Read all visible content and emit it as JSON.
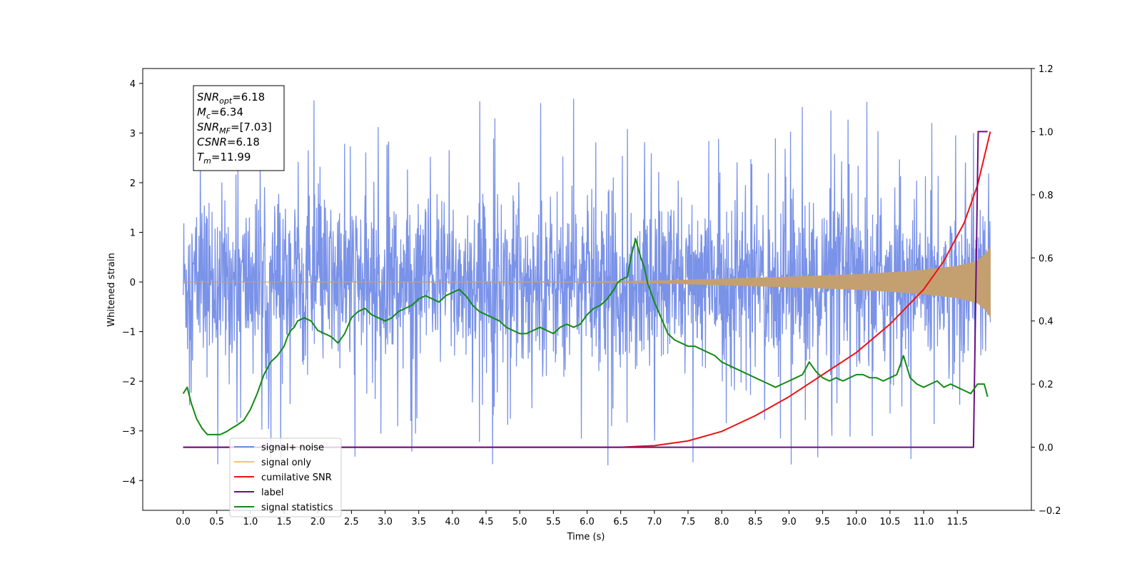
{
  "chart_data": {
    "type": "line",
    "xlabel": "Time (s)",
    "ylabel": "Whitened strain",
    "xlim": [
      -0.6,
      12.6
    ],
    "ylim_left": [
      -4.6,
      4.3
    ],
    "ylim_right": [
      -0.2,
      1.2
    ],
    "x_ticks": [
      0.0,
      0.5,
      1.0,
      1.5,
      2.0,
      2.5,
      3.0,
      3.5,
      4.0,
      4.5,
      5.0,
      5.5,
      6.0,
      6.5,
      7.0,
      7.5,
      8.0,
      8.5,
      9.0,
      9.5,
      10.0,
      10.5,
      11.0,
      11.5
    ],
    "x_tick_labels": [
      "0.0",
      "0.5",
      "1.0",
      "1.5",
      "2.0",
      "2.5",
      "3.0",
      "3.5",
      "4.0",
      "4.5",
      "5.0",
      "5.5",
      "6.0",
      "6.5",
      "7.0",
      "7.5",
      "8.0",
      "8.5",
      "9.0",
      "9.5",
      "10.0",
      "10.5",
      "11.0",
      "11.5"
    ],
    "y_ticks_left": [
      4,
      3,
      2,
      1,
      0,
      -1,
      -2,
      -3,
      -4
    ],
    "y_tick_labels_left": [
      "4",
      "3",
      "2",
      "1",
      "0",
      "−1",
      "−2",
      "−3",
      "−4"
    ],
    "y_ticks_right": [
      1.2,
      1.0,
      0.8,
      0.6,
      0.4,
      0.2,
      0.0,
      -0.2
    ],
    "y_tick_labels_right": [
      "1.2",
      "1.0",
      "0.8",
      "0.6",
      "0.4",
      "0.2",
      "0.0",
      "−0.2"
    ],
    "info_box": [
      {
        "base": "SNR",
        "sub": "opt",
        "rest": "=6.18"
      },
      {
        "base": "M",
        "sub": "c",
        "rest": "=6.34"
      },
      {
        "base": "SNR",
        "sub": "MF",
        "rest": "=[7.03]"
      },
      {
        "base": "CSNR",
        "sub": "",
        "rest": "=6.18"
      },
      {
        "base": "T",
        "sub": "m",
        "rest": "=11.99"
      }
    ],
    "legend": {
      "position": "lower-left",
      "entries": [
        {
          "label": "signal+ noise",
          "color": "#6f8de6"
        },
        {
          "label": "signal only",
          "color": "#ffc060"
        },
        {
          "label": "cumilative SNR",
          "color": "#ee1111"
        },
        {
          "label": "label",
          "color": "#6a0d83"
        },
        {
          "label": "signal statistics",
          "color": "#138a13"
        }
      ]
    },
    "series": [
      {
        "name": "signal+ noise",
        "axis": "left",
        "color": "#7a92e8",
        "t_start": 0.0,
        "t_end": 11.99,
        "typical_band": [
          -1.8,
          1.8
        ],
        "spike_range": [
          -4.1,
          3.8
        ]
      },
      {
        "name": "signal only",
        "axis": "left",
        "color": "#c4a070",
        "t_start": 0.0,
        "t_end": 11.99,
        "envelope": {
          "t": [
            0.0,
            6.0,
            7.0,
            8.0,
            9.0,
            10.0,
            10.5,
            11.0,
            11.5,
            11.8,
            11.95,
            11.99
          ],
          "amp": [
            0.0,
            0.005,
            0.02,
            0.06,
            0.1,
            0.15,
            0.19,
            0.24,
            0.32,
            0.42,
            0.6,
            0.72
          ]
        }
      },
      {
        "name": "cumilative SNR",
        "axis": "right",
        "color": "#ee1111",
        "x": [
          0.0,
          6.5,
          7.0,
          7.5,
          8.0,
          8.5,
          9.0,
          9.5,
          10.0,
          10.5,
          11.0,
          11.3,
          11.6,
          11.8,
          11.99
        ],
        "y": [
          0.0,
          0.0,
          0.005,
          0.02,
          0.05,
          0.1,
          0.16,
          0.23,
          0.3,
          0.39,
          0.5,
          0.59,
          0.71,
          0.83,
          1.0
        ]
      },
      {
        "name": "label",
        "axis": "right",
        "color": "#6a0d83",
        "x": [
          0.0,
          11.74,
          11.81,
          11.95
        ],
        "y": [
          0.0,
          0.0,
          1.0,
          1.0
        ]
      },
      {
        "name": "signal statistics",
        "axis": "right",
        "color": "#138a13",
        "x": [
          0.0,
          0.06,
          0.12,
          0.2,
          0.28,
          0.36,
          0.45,
          0.55,
          0.65,
          0.72,
          0.8,
          0.9,
          1.0,
          1.1,
          1.2,
          1.3,
          1.4,
          1.5,
          1.55,
          1.6,
          1.65,
          1.7,
          1.8,
          1.9,
          2.0,
          2.1,
          2.2,
          2.3,
          2.4,
          2.5,
          2.6,
          2.7,
          2.8,
          2.9,
          3.0,
          3.1,
          3.2,
          3.3,
          3.4,
          3.5,
          3.6,
          3.7,
          3.8,
          3.9,
          4.0,
          4.1,
          4.2,
          4.3,
          4.4,
          4.5,
          4.6,
          4.7,
          4.8,
          4.9,
          5.0,
          5.1,
          5.2,
          5.3,
          5.4,
          5.5,
          5.6,
          5.7,
          5.8,
          5.9,
          6.0,
          6.1,
          6.2,
          6.3,
          6.4,
          6.45,
          6.5,
          6.6,
          6.65,
          6.72,
          6.8,
          6.85,
          6.9,
          7.0,
          7.1,
          7.2,
          7.3,
          7.4,
          7.5,
          7.6,
          7.7,
          7.8,
          7.9,
          8.0,
          8.1,
          8.2,
          8.3,
          8.4,
          8.5,
          8.6,
          8.7,
          8.8,
          8.9,
          9.0,
          9.1,
          9.2,
          9.3,
          9.4,
          9.5,
          9.6,
          9.7,
          9.8,
          9.9,
          10.0,
          10.1,
          10.2,
          10.3,
          10.4,
          10.5,
          10.6,
          10.7,
          10.8,
          10.9,
          11.0,
          11.1,
          11.2,
          11.3,
          11.4,
          11.5,
          11.6,
          11.7,
          11.8,
          11.9,
          11.95
        ],
        "y": [
          0.17,
          0.19,
          0.14,
          0.09,
          0.06,
          0.04,
          0.04,
          0.04,
          0.05,
          0.06,
          0.07,
          0.085,
          0.12,
          0.17,
          0.23,
          0.27,
          0.29,
          0.32,
          0.35,
          0.37,
          0.38,
          0.4,
          0.41,
          0.4,
          0.37,
          0.36,
          0.35,
          0.33,
          0.36,
          0.41,
          0.43,
          0.44,
          0.42,
          0.41,
          0.4,
          0.41,
          0.43,
          0.44,
          0.45,
          0.47,
          0.48,
          0.47,
          0.46,
          0.48,
          0.49,
          0.5,
          0.48,
          0.45,
          0.43,
          0.42,
          0.41,
          0.4,
          0.38,
          0.37,
          0.36,
          0.36,
          0.37,
          0.38,
          0.37,
          0.36,
          0.38,
          0.39,
          0.38,
          0.39,
          0.42,
          0.44,
          0.45,
          0.47,
          0.5,
          0.52,
          0.53,
          0.54,
          0.6,
          0.66,
          0.6,
          0.57,
          0.52,
          0.46,
          0.41,
          0.36,
          0.34,
          0.33,
          0.32,
          0.32,
          0.31,
          0.3,
          0.29,
          0.27,
          0.26,
          0.25,
          0.24,
          0.23,
          0.22,
          0.21,
          0.2,
          0.19,
          0.2,
          0.21,
          0.22,
          0.23,
          0.27,
          0.24,
          0.22,
          0.21,
          0.22,
          0.21,
          0.22,
          0.23,
          0.23,
          0.22,
          0.22,
          0.21,
          0.22,
          0.23,
          0.29,
          0.22,
          0.2,
          0.19,
          0.2,
          0.21,
          0.19,
          0.2,
          0.19,
          0.18,
          0.17,
          0.2,
          0.2,
          0.16
        ]
      }
    ]
  }
}
